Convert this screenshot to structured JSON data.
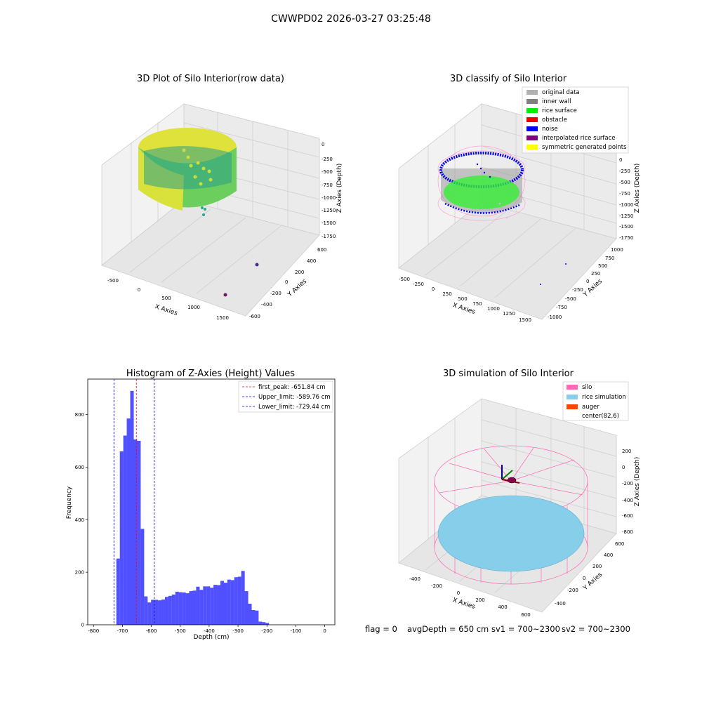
{
  "figure": {
    "title": "CWWPD02 2026-03-27 03:25:48",
    "footer": {
      "flag": "flag = 0",
      "avg_depth": "avgDepth = 650 cm",
      "sv1": "sv1 = 700~2300",
      "sv2": "sv2 = 700~2300"
    }
  },
  "panels": {
    "raw": {
      "title": "3D Plot of Silo Interior(row data)",
      "xlabel": "X Axies",
      "ylabel": "Y Axies",
      "zlabel": "Z Axies (Depth)",
      "xticks": [
        "-500",
        "0",
        "500",
        "1000",
        "1500"
      ],
      "yticks": [
        "600",
        "400",
        "200",
        "0",
        "-200",
        "-400",
        "-600"
      ],
      "zticks": [
        "0",
        "-250",
        "-500",
        "-750",
        "-1000",
        "-1250",
        "-1500",
        "-1750"
      ]
    },
    "classify": {
      "title": "3D classify of Silo Interior",
      "xlabel": "X Axies",
      "ylabel": "Y Axies",
      "zlabel": "Z Axies (Depth)",
      "xticks": [
        "-500",
        "-250",
        "0",
        "250",
        "500",
        "750",
        "1000",
        "1250",
        "1500"
      ],
      "yticks": [
        "1000",
        "750",
        "500",
        "250",
        "0",
        "-250",
        "-500",
        "-750",
        "-1000"
      ],
      "zticks": [
        "0",
        "-250",
        "-500",
        "-750",
        "-1000",
        "-1250",
        "-1500",
        "-1750"
      ],
      "legend": [
        {
          "label": "original data",
          "color": "#b0b0b0"
        },
        {
          "label": "inner wall",
          "color": "#808080"
        },
        {
          "label": "rice surface",
          "color": "#00ee00"
        },
        {
          "label": "obstacle",
          "color": "#ee0000"
        },
        {
          "label": "noise",
          "color": "#0000ee"
        },
        {
          "label": "interpolated rice surface",
          "color": "#800080"
        },
        {
          "label": "symmetric generated points",
          "color": "#ffff00"
        }
      ]
    },
    "simulation": {
      "title": "3D simulation of Silo Interior",
      "xlabel": "X Axies",
      "ylabel": "Y Axies",
      "zlabel": "Z Axies (Depth)",
      "xticks": [
        "-400",
        "-200",
        "0",
        "200",
        "400",
        "600"
      ],
      "yticks": [
        "600",
        "400",
        "200",
        "0",
        "-200",
        "-400"
      ],
      "zticks": [
        "200",
        "0",
        "-200",
        "-400",
        "-600",
        "-800"
      ],
      "legend": [
        {
          "label": "silo",
          "color": "#ff69b4"
        },
        {
          "label": "rice simulation",
          "color": "#87ceeb"
        },
        {
          "label": "auger",
          "color": "#ff4500"
        },
        {
          "label": "center(82,6)",
          "color": null
        }
      ]
    }
  },
  "chart_data": [
    {
      "type": "histogram",
      "title": "Histogram of Z-Axies (Height) Values",
      "xlabel": "Depth (cm)",
      "ylabel": "Frequency",
      "xlim": [
        -820,
        35
      ],
      "ylim": [
        0,
        935
      ],
      "xticks": [
        -800,
        -700,
        -600,
        -500,
        -400,
        -300,
        -200,
        -100,
        0
      ],
      "yticks": [
        0,
        200,
        400,
        600,
        800
      ],
      "bar_color": "#5050ff",
      "bin_width": 12.2,
      "bins": [
        {
          "x0": -800,
          "value": 1
        },
        {
          "x0": -721,
          "value": 252
        },
        {
          "x0": -709,
          "value": 660
        },
        {
          "x0": -697,
          "value": 720
        },
        {
          "x0": -685,
          "value": 785
        },
        {
          "x0": -673,
          "value": 890
        },
        {
          "x0": -661,
          "value": 705
        },
        {
          "x0": -649,
          "value": 700
        },
        {
          "x0": -637,
          "value": 365
        },
        {
          "x0": -625,
          "value": 108
        },
        {
          "x0": -613,
          "value": 85
        },
        {
          "x0": -601,
          "value": 95
        },
        {
          "x0": -589,
          "value": 95
        },
        {
          "x0": -577,
          "value": 93
        },
        {
          "x0": -565,
          "value": 96
        },
        {
          "x0": -553,
          "value": 106
        },
        {
          "x0": -541,
          "value": 110
        },
        {
          "x0": -529,
          "value": 115
        },
        {
          "x0": -517,
          "value": 126
        },
        {
          "x0": -505,
          "value": 124
        },
        {
          "x0": -493,
          "value": 123
        },
        {
          "x0": -481,
          "value": 120
        },
        {
          "x0": -469,
          "value": 128
        },
        {
          "x0": -457,
          "value": 130
        },
        {
          "x0": -445,
          "value": 145
        },
        {
          "x0": -433,
          "value": 133
        },
        {
          "x0": -421,
          "value": 146
        },
        {
          "x0": -409,
          "value": 146
        },
        {
          "x0": -397,
          "value": 141
        },
        {
          "x0": -385,
          "value": 152
        },
        {
          "x0": -373,
          "value": 151
        },
        {
          "x0": -361,
          "value": 167
        },
        {
          "x0": -349,
          "value": 160
        },
        {
          "x0": -337,
          "value": 172
        },
        {
          "x0": -325,
          "value": 170
        },
        {
          "x0": -313,
          "value": 181
        },
        {
          "x0": -301,
          "value": 183
        },
        {
          "x0": -289,
          "value": 205
        },
        {
          "x0": -277,
          "value": 128
        },
        {
          "x0": -265,
          "value": 80
        },
        {
          "x0": -253,
          "value": 56
        },
        {
          "x0": -241,
          "value": 54
        },
        {
          "x0": -229,
          "value": 12
        },
        {
          "x0": -217,
          "value": 10
        },
        {
          "x0": -205,
          "value": 7
        }
      ],
      "reference_lines": [
        {
          "label": "first_peak: -651.84 cm",
          "x": -651.84,
          "color": "#ff0000"
        },
        {
          "label": "Upper_limit: -589.76 cm",
          "x": -589.76,
          "color": "#0000ff"
        },
        {
          "label": "Lower_limit: -729.44 cm",
          "x": -729.44,
          "color": "#0000ff"
        }
      ]
    }
  ]
}
